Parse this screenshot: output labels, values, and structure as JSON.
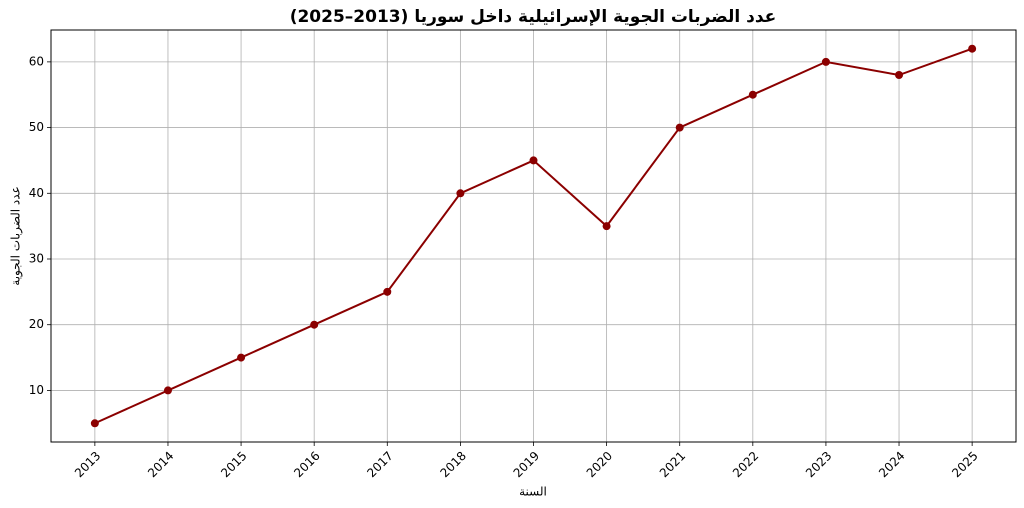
{
  "chart_data": {
    "type": "line",
    "title": "عدد الضربات الجوية الإسرائيلية داخل سوريا (2013–2025)",
    "x_label": "السنة",
    "y_label": "عدد الضربات الجوية",
    "x": [
      2013,
      2014,
      2015,
      2016,
      2017,
      2018,
      2019,
      2020,
      2021,
      2022,
      2023,
      2024,
      2025
    ],
    "series": [
      {
        "name": "عدد الضربات الجوية",
        "color": "#8b0000",
        "values": [
          5,
          10,
          15,
          20,
          25,
          40,
          45,
          35,
          50,
          55,
          60,
          58,
          62
        ]
      }
    ],
    "xlim": [
      2012.4,
      2025.6
    ],
    "ylim": [
      2.15,
      64.85
    ],
    "xticks": [
      2013,
      2014,
      2015,
      2016,
      2017,
      2018,
      2019,
      2020,
      2021,
      2022,
      2023,
      2024,
      2025
    ],
    "yticks": [
      10,
      20,
      30,
      40,
      50,
      60
    ],
    "grid": true
  }
}
